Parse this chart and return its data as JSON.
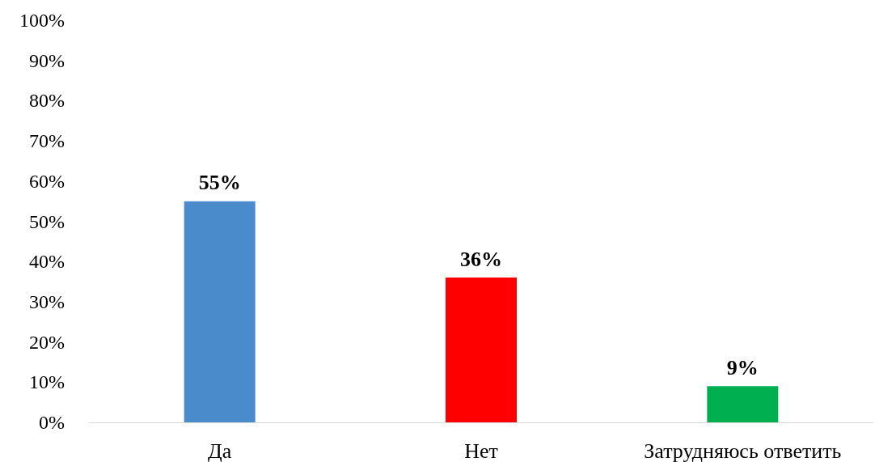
{
  "chart_data": {
    "type": "bar",
    "categories": [
      "Да",
      "Нет",
      "Затрудняюсь ответить"
    ],
    "values": [
      55,
      36,
      9
    ],
    "colors": [
      "#4a8bcb",
      "#ff0000",
      "#00b050"
    ],
    "value_labels": [
      "55%",
      "36%",
      "9%"
    ],
    "ylim": [
      0,
      100
    ],
    "yticks": [
      {
        "value": 0,
        "label": "0%"
      },
      {
        "value": 10,
        "label": "10%"
      },
      {
        "value": 20,
        "label": "20%"
      },
      {
        "value": 30,
        "label": "30%"
      },
      {
        "value": 40,
        "label": "40%"
      },
      {
        "value": 50,
        "label": "50%"
      },
      {
        "value": 60,
        "label": "60%"
      },
      {
        "value": 70,
        "label": "70%"
      },
      {
        "value": 80,
        "label": "80%"
      },
      {
        "value": 90,
        "label": "90%"
      },
      {
        "value": 100,
        "label": "100%"
      }
    ],
    "grid": false
  }
}
